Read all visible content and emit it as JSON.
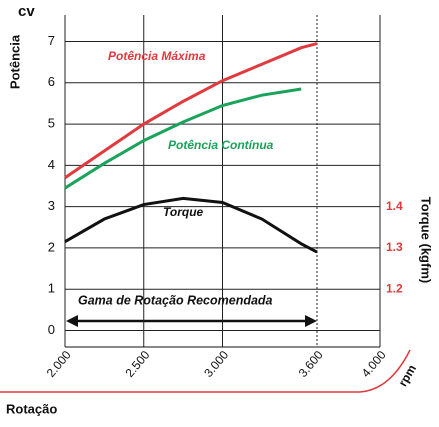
{
  "chart_data": {
    "type": "line",
    "y_title": "cv",
    "y_label": "Potência",
    "y2_label": "Torque (kgfm)",
    "x_label": "Rotação",
    "x_unit": "rpm",
    "annotation": "Gama de Rotação Recomendada",
    "x": [
      2000,
      2250,
      2500,
      2750,
      3000,
      3250,
      3500,
      3600
    ],
    "series": [
      {
        "name": "Potência Máxima",
        "color": "#e03a3e",
        "values": [
          3.7,
          4.35,
          5.0,
          5.55,
          6.05,
          6.45,
          6.85,
          6.95
        ]
      },
      {
        "name": "Potência Contínua",
        "color": "#1aa35a",
        "values": [
          3.45,
          4.05,
          4.6,
          5.05,
          5.45,
          5.7,
          5.85,
          null
        ]
      },
      {
        "name": "Torque",
        "color": "#111111",
        "axis": "y2",
        "values": [
          1.315,
          1.37,
          1.405,
          1.42,
          1.41,
          1.37,
          1.31,
          1.29
        ]
      }
    ],
    "xlim": [
      2000,
      4000
    ],
    "xticks": [
      {
        "value": 2000,
        "label": "2.000"
      },
      {
        "value": 2500,
        "label": "2.500"
      },
      {
        "value": 3000,
        "label": "3.000"
      },
      {
        "value": 3600,
        "label": "3.600"
      },
      {
        "value": 4000,
        "label": "4.000"
      }
    ],
    "ylim": [
      -0.4,
      7.4
    ],
    "yticks": [
      0,
      1,
      2,
      3,
      4,
      5,
      6,
      7
    ],
    "y2lim": [
      1.06,
      1.84
    ],
    "y2ticks": [
      1.2,
      1.3,
      1.4
    ],
    "y2_color": "#e03a3e",
    "grid": true
  }
}
